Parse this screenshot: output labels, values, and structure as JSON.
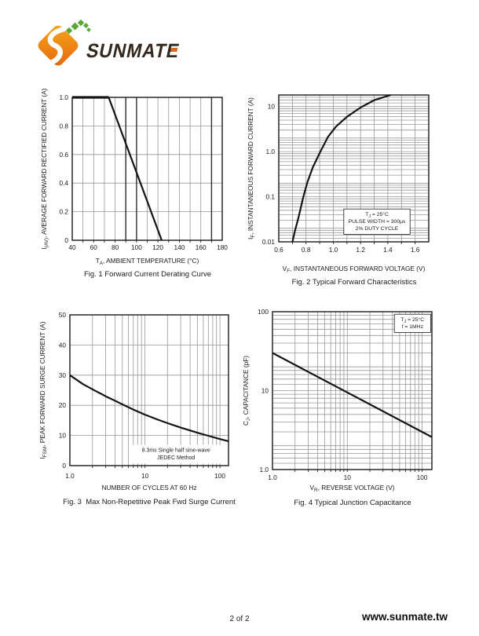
{
  "page": {
    "number": "2 of 2",
    "website": "www.sunmate.tw"
  },
  "logo": {
    "wordmark": "SUNMATE",
    "colors": {
      "orange_light": "#F6A81C",
      "orange_deep": "#E4670E",
      "green": "#5BA839",
      "text": "#33291E"
    }
  },
  "chart_data": [
    {
      "id": "fig1",
      "type": "line",
      "title": "Fig. 1 Forward Current Derating Curve",
      "xlabel": "T~A~, AMBIENT TEMPERATURE (°C)",
      "ylabel": "I~(AV)~, AVERAGE FORWARD RECTIFIED CURRENT (A)",
      "xscale": "linear",
      "yscale": "linear",
      "xlim": [
        40,
        180
      ],
      "ylim": [
        0,
        1
      ],
      "xminor_step": 10,
      "yminor_step": 0.2,
      "xticks": {
        "values": [
          40,
          60,
          80,
          100,
          120,
          140,
          160,
          180
        ],
        "labels": [
          "40",
          "60",
          "80",
          "100",
          "120",
          "140",
          "160",
          "180"
        ]
      },
      "yticks": {
        "values": [
          0,
          0.2,
          0.4,
          0.6,
          0.8,
          1.0
        ],
        "labels": [
          "0",
          "0.2",
          "0.4",
          "0.6",
          "0.8",
          "1.0"
        ]
      },
      "dark_vlines": [
        90,
        100,
        170
      ],
      "grid": true,
      "legend": null,
      "annotation": null,
      "series": [
        {
          "name": "plateau",
          "x": [
            40,
            74
          ],
          "y": [
            1.0,
            1.0
          ],
          "width": 3.2
        },
        {
          "name": "derating",
          "x": [
            74,
            123.5
          ],
          "y": [
            1.0,
            0
          ],
          "width": 2.2
        }
      ]
    },
    {
      "id": "fig2",
      "type": "line",
      "title": "Fig. 2 Typical Forward Characteristics",
      "xlabel": "V~F~, INSTANTANEOUS FORWARD VOLTAGE (V)",
      "ylabel": "I~F~, INSTANTANEOUS FORWARD CURRENT (A)",
      "xscale": "linear",
      "yscale": "log",
      "xlim": [
        0.6,
        1.7
      ],
      "ylim": [
        0.01,
        18
      ],
      "xminor_step": 0.1,
      "y_log_minors": [
        1.2,
        1.4,
        1.6,
        1.8,
        2,
        3,
        4,
        5,
        6,
        7,
        8,
        9
      ],
      "xticks": {
        "values": [
          0.6,
          0.8,
          1.0,
          1.2,
          1.4,
          1.6
        ],
        "labels": [
          "0.6",
          "0.8",
          "1.0",
          "1.2",
          "1.4",
          "1.6"
        ]
      },
      "yticks": {
        "values": [
          0.01,
          0.1,
          1,
          10
        ],
        "labels": [
          "0.01",
          "0.1",
          "1.0",
          "10"
        ]
      },
      "grid": true,
      "annotation": {
        "lines": [
          "T~J~ = 25°C",
          "PULSE WIDTH = 300μs",
          "2% DUTY CYCLE"
        ],
        "x": 1.32,
        "y": 0.028,
        "boxed": true,
        "anchor": "center",
        "font": 6.8
      },
      "series": [
        {
          "name": "IF vs VF",
          "x": [
            0.7,
            0.72,
            0.745,
            0.78,
            0.81,
            0.85,
            0.905,
            0.96,
            1.02,
            1.1,
            1.2,
            1.3,
            1.42
          ],
          "y": [
            0.01,
            0.018,
            0.035,
            0.1,
            0.21,
            0.45,
            1.0,
            2.1,
            3.6,
            5.9,
            9.5,
            13.8,
            18
          ]
        }
      ]
    },
    {
      "id": "fig3",
      "type": "line",
      "title": "Fig. 3  Max Non-Repetitive Peak Fwd Surge Current",
      "xlabel": "NUMBER OF CYCLES AT 60 Hz",
      "ylabel": "I~FSM~, PEAK FORWARD SURGE CURRENT (A)",
      "xscale": "log",
      "yscale": "linear",
      "xlim": [
        1,
        130
      ],
      "ylim": [
        0,
        50
      ],
      "x_log_minors": [
        2,
        3,
        4,
        5,
        6,
        7,
        8,
        9
      ],
      "yminor_step": 10,
      "xticks": {
        "values": [
          1,
          10,
          100
        ],
        "labels": [
          "1.0",
          "10",
          "100"
        ]
      },
      "yticks": {
        "values": [
          0,
          10,
          20,
          30,
          40,
          50
        ],
        "labels": [
          "0",
          "10",
          "20",
          "30",
          "40",
          "50"
        ]
      },
      "grid": true,
      "annotation": {
        "lines": [
          "8.3ms Single half sine-wave",
          "JEDEC Method"
        ],
        "x": 26,
        "y": 3.8,
        "boxed": false,
        "anchor": "center",
        "font": 7
      },
      "series": [
        {
          "name": "IFSM vs cycles",
          "x": [
            1,
            1.5,
            2,
            3,
            4,
            5,
            7,
            10,
            15,
            20,
            30,
            50,
            70,
            100,
            130
          ],
          "y": [
            30,
            27,
            25.3,
            23,
            21.5,
            20.3,
            18.6,
            16.9,
            15.2,
            14.1,
            12.6,
            10.9,
            9.9,
            8.8,
            8.1
          ]
        }
      ]
    },
    {
      "id": "fig4",
      "type": "line",
      "title": "Fig. 4 Typical Junction Capacitance",
      "xlabel": "V~R~, REVERSE VOLTAGE (V)",
      "ylabel": "C~J~, CAPACITANCE (pF)",
      "xscale": "log",
      "yscale": "log",
      "xlim": [
        1,
        135
      ],
      "ylim": [
        1,
        100
      ],
      "x_log_minors": [
        2,
        3,
        4,
        5,
        6,
        7,
        8,
        9
      ],
      "y_log_minors": [
        1.2,
        1.4,
        1.6,
        1.8,
        2,
        3,
        4,
        5,
        6,
        7,
        8,
        9
      ],
      "xticks": {
        "values": [
          1,
          10,
          100
        ],
        "labels": [
          "1.0",
          "10",
          "100"
        ]
      },
      "yticks": {
        "values": [
          1,
          10,
          100
        ],
        "labels": [
          "1.0",
          "10",
          "100"
        ]
      },
      "grid": true,
      "annotation": {
        "lines": [
          "T~J~ = 25°C",
          "f = 1MHz"
        ],
        "x": 130,
        "y": 93,
        "boxed": true,
        "anchor": "top-right",
        "font": 6.8
      },
      "series": [
        {
          "name": "CJ vs VR",
          "x": [
            1,
            10,
            135
          ],
          "y": [
            30,
            9.49,
            2.58
          ]
        }
      ]
    }
  ]
}
